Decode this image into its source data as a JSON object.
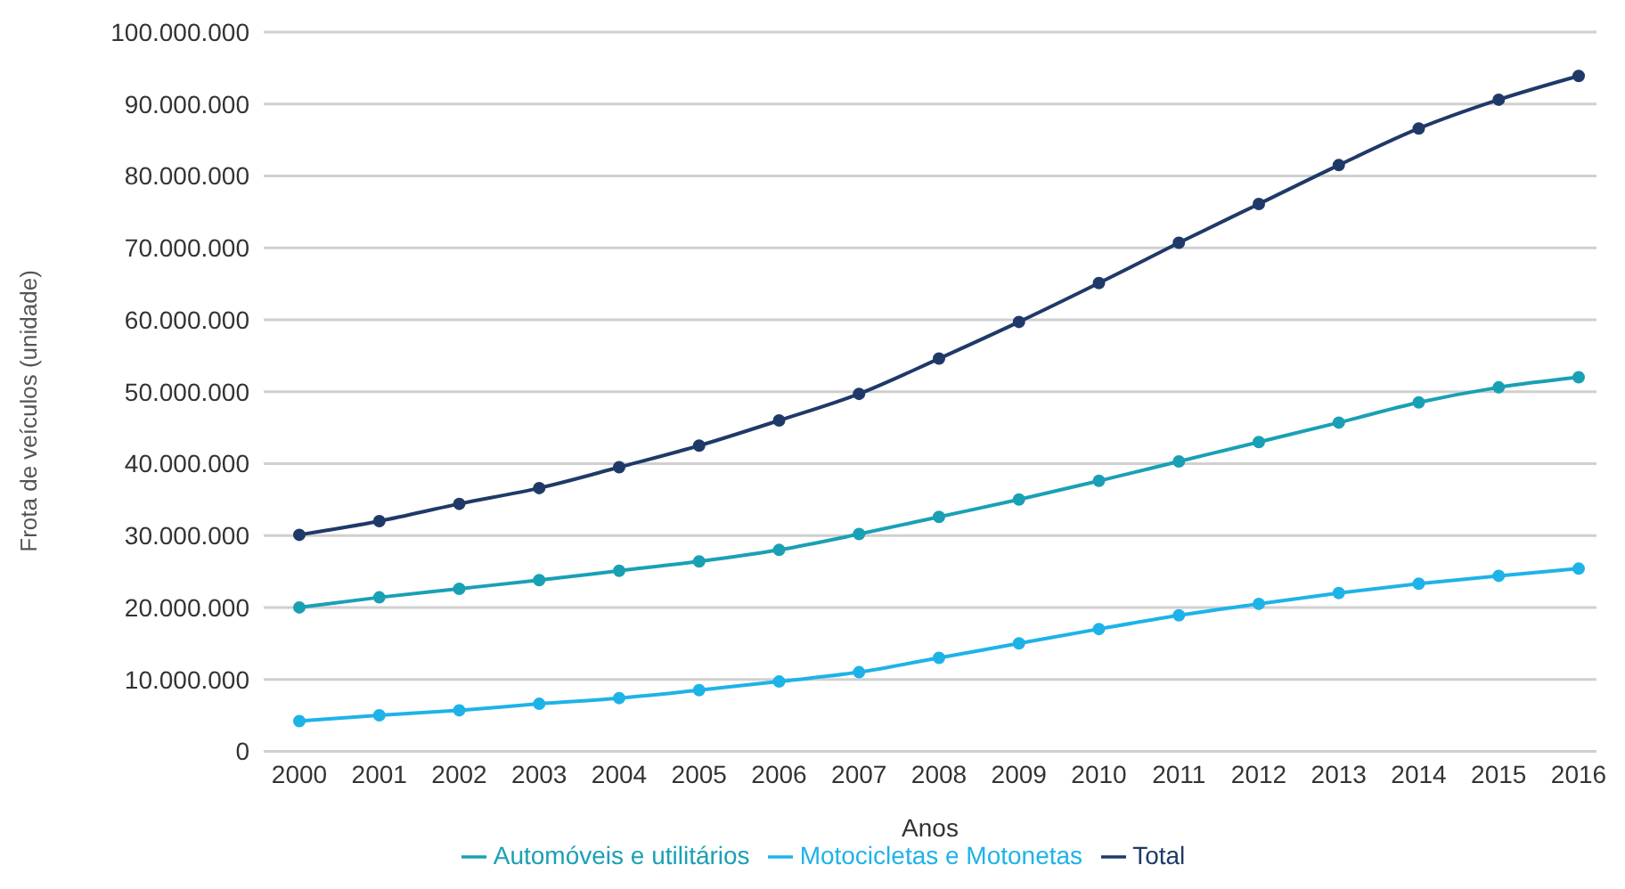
{
  "chart_data": {
    "type": "line",
    "xlabel": "Anos",
    "ylabel": "Frota de veículos (unidade)",
    "categories": [
      "2000",
      "2001",
      "2002",
      "2003",
      "2004",
      "2005",
      "2006",
      "2007",
      "2008",
      "2009",
      "2010",
      "2011",
      "2012",
      "2013",
      "2014",
      "2015",
      "2016"
    ],
    "series": [
      {
        "name": "Total",
        "color": "#1f3a68",
        "values": [
          30100000,
          32000000,
          34400000,
          36600000,
          39500000,
          42500000,
          46000000,
          49700000,
          54600000,
          59700000,
          65100000,
          70700000,
          76100000,
          81500000,
          86600000,
          90600000,
          93900000
        ]
      },
      {
        "name": "Automóveis e utilitários",
        "color": "#1aa0b5",
        "values": [
          20000000,
          21400000,
          22600000,
          23800000,
          25100000,
          26400000,
          28000000,
          30200000,
          32600000,
          35000000,
          37600000,
          40300000,
          43000000,
          45700000,
          48500000,
          50600000,
          52000000
        ]
      },
      {
        "name": "Motocicletas e Motonetas",
        "color": "#1eb3e8",
        "values": [
          4200000,
          5000000,
          5700000,
          6600000,
          7400000,
          8500000,
          9700000,
          11000000,
          13000000,
          15000000,
          17000000,
          18900000,
          20500000,
          22000000,
          23300000,
          24400000,
          25400000
        ]
      }
    ],
    "ylim": [
      0,
      100000000
    ],
    "yticks": [
      0,
      {
        "value": 10000000,
        "label": "10.000.000"
      },
      {
        "value": 20000000,
        "label": "20.000.000"
      },
      {
        "value": 30000000,
        "label": "30.000.000"
      },
      {
        "value": 40000000,
        "label": "40.000.000"
      },
      {
        "value": 50000000,
        "label": "50.000.000"
      },
      {
        "value": 60000000,
        "label": "60.000.000"
      },
      {
        "value": 70000000,
        "label": "70.000.000"
      },
      {
        "value": 80000000,
        "label": "80.000.000"
      },
      {
        "value": 90000000,
        "label": "90.000.000"
      },
      {
        "value": 100000000,
        "label": "100.000.000"
      }
    ],
    "grid": "y",
    "legend": "bottom",
    "marker": "circle",
    "line_style": "solid"
  }
}
